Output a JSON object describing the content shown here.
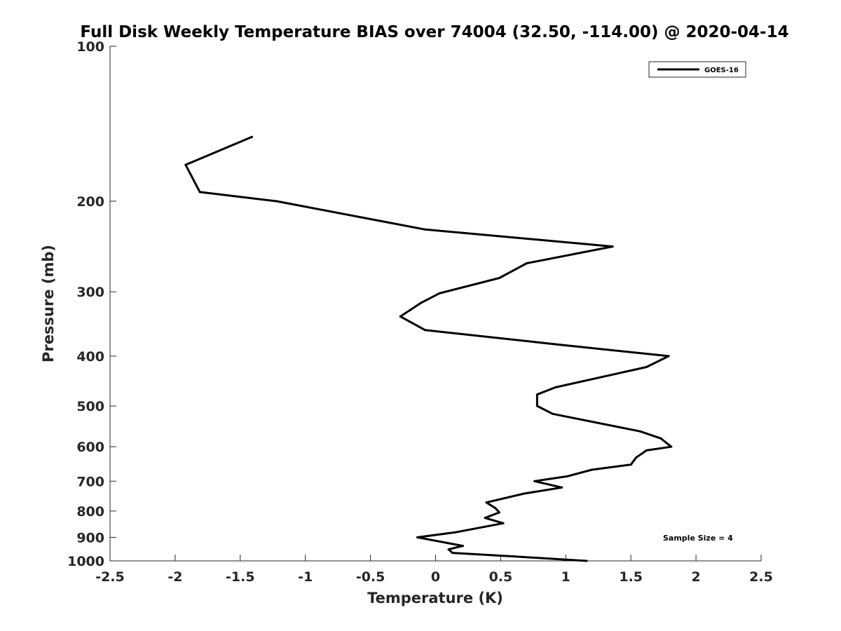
{
  "chart_data": {
    "type": "line",
    "title": "Full Disk Weekly Temperature BIAS over 74004 (32.50, -114.00) @ 2020-04-14",
    "xlabel": "Temperature (K)",
    "ylabel": "Pressure (mb)",
    "xlim": [
      -2.5,
      2.5
    ],
    "ylim": [
      100,
      1000
    ],
    "y_scale": "log",
    "y_reversed": true,
    "x_ticks": [
      "-2.5",
      "-2",
      "-1.5",
      "-1",
      "-0.5",
      "0",
      "0.5",
      "1",
      "1.5",
      "2",
      "2.5"
    ],
    "y_ticks": [
      "100",
      "200",
      "300",
      "400",
      "500",
      "600",
      "700",
      "800",
      "900",
      "1000"
    ],
    "grid": false,
    "legend_position": "top-right",
    "series": [
      {
        "name": "GOES-16",
        "color": "#000000",
        "points": [
          {
            "x": -1.41,
            "y": 150
          },
          {
            "x": -1.92,
            "y": 170
          },
          {
            "x": -1.81,
            "y": 192
          },
          {
            "x": -1.22,
            "y": 200
          },
          {
            "x": -0.08,
            "y": 227
          },
          {
            "x": 1.36,
            "y": 245
          },
          {
            "x": 0.7,
            "y": 264
          },
          {
            "x": 0.49,
            "y": 282
          },
          {
            "x": 0.03,
            "y": 302
          },
          {
            "x": -0.11,
            "y": 315
          },
          {
            "x": -0.27,
            "y": 335
          },
          {
            "x": -0.08,
            "y": 356
          },
          {
            "x": 0.95,
            "y": 380
          },
          {
            "x": 1.79,
            "y": 400
          },
          {
            "x": 1.62,
            "y": 420
          },
          {
            "x": 0.92,
            "y": 460
          },
          {
            "x": 0.78,
            "y": 475
          },
          {
            "x": 0.78,
            "y": 500
          },
          {
            "x": 0.9,
            "y": 518
          },
          {
            "x": 1.57,
            "y": 560
          },
          {
            "x": 1.73,
            "y": 578
          },
          {
            "x": 1.81,
            "y": 600
          },
          {
            "x": 1.62,
            "y": 610
          },
          {
            "x": 1.54,
            "y": 630
          },
          {
            "x": 1.5,
            "y": 650
          },
          {
            "x": 1.2,
            "y": 665
          },
          {
            "x": 1.01,
            "y": 685
          },
          {
            "x": 0.76,
            "y": 700
          },
          {
            "x": 0.97,
            "y": 720
          },
          {
            "x": 0.68,
            "y": 740
          },
          {
            "x": 0.39,
            "y": 770
          },
          {
            "x": 0.46,
            "y": 790
          },
          {
            "x": 0.49,
            "y": 805
          },
          {
            "x": 0.38,
            "y": 825
          },
          {
            "x": 0.52,
            "y": 845
          },
          {
            "x": 0.15,
            "y": 880
          },
          {
            "x": -0.14,
            "y": 900
          },
          {
            "x": 0.21,
            "y": 935
          },
          {
            "x": 0.1,
            "y": 950
          },
          {
            "x": 0.13,
            "y": 965
          },
          {
            "x": 0.6,
            "y": 980
          },
          {
            "x": 1.16,
            "y": 1000
          }
        ]
      }
    ],
    "annotations": [
      "Sample Size = 4"
    ]
  }
}
